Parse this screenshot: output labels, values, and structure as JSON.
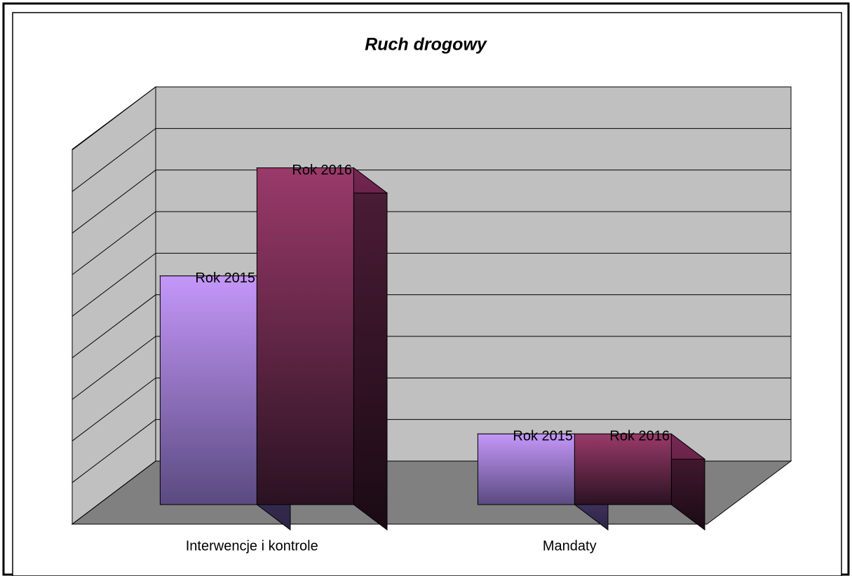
{
  "chart_data": {
    "type": "bar3d",
    "title": "Ruch drogowy",
    "categories": [
      "Interwencje i kontrole",
      "Mandaty"
    ],
    "series": [
      {
        "name": "Rok 2015",
        "color": "#c497f9",
        "values": [
          5.5,
          1.7
        ]
      },
      {
        "name": "Rok 2016",
        "color": "#9a3a6a",
        "values": [
          8.1,
          1.7
        ]
      }
    ],
    "ylim": [
      0,
      9
    ],
    "yticks": [
      0,
      1,
      2,
      3,
      4,
      5,
      6,
      7,
      8,
      9
    ],
    "grid": true
  }
}
